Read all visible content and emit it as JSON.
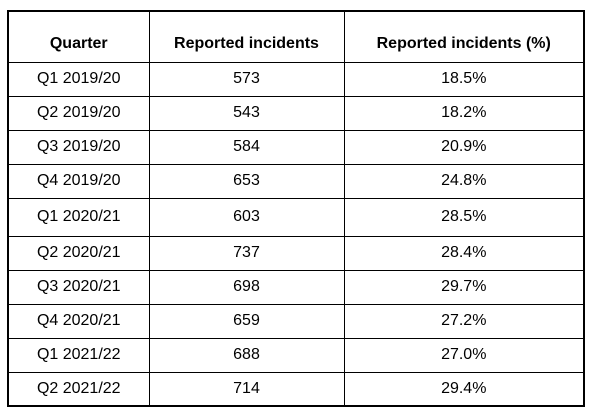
{
  "chart_data": {
    "type": "table",
    "title": "",
    "columns": [
      "Quarter",
      "Reported incidents",
      "Reported incidents (%)"
    ],
    "rows": [
      [
        "Q1 2019/20",
        "573",
        "18.5%"
      ],
      [
        "Q2 2019/20",
        "543",
        "18.2%"
      ],
      [
        "Q3 2019/20",
        "584",
        "20.9%"
      ],
      [
        "Q4 2019/20",
        "653",
        "24.8%"
      ],
      [
        "Q1 2020/21",
        "603",
        "28.5%"
      ],
      [
        "Q2 2020/21",
        "737",
        "28.4%"
      ],
      [
        "Q3 2020/21",
        "698",
        "29.7%"
      ],
      [
        "Q4 2020/21",
        "659",
        "27.2%"
      ],
      [
        "Q1 2021/22",
        "688",
        "27.0%"
      ],
      [
        "Q2 2021/22",
        "714",
        "29.4%"
      ]
    ],
    "quarters": [
      "Q1 2019/20",
      "Q2 2019/20",
      "Q3 2019/20",
      "Q4 2019/20",
      "Q1 2020/21",
      "Q2 2020/21",
      "Q3 2020/21",
      "Q4 2020/21",
      "Q1 2021/22",
      "Q2 2021/22"
    ],
    "incident_counts": [
      573,
      543,
      584,
      653,
      603,
      737,
      698,
      659,
      688,
      714
    ],
    "incident_percentages": [
      18.5,
      18.2,
      20.9,
      24.8,
      28.5,
      28.4,
      29.7,
      27.2,
      27.0,
      29.4
    ]
  },
  "colors": {
    "border": "#000000",
    "text": "#000000",
    "background": "#ffffff"
  }
}
